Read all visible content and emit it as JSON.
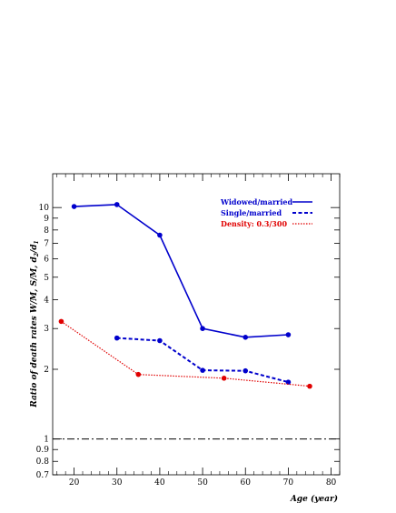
{
  "chart_data": {
    "type": "line",
    "xlabel": "Age (year)",
    "ylabel": "Ratio of death rates W/M, S/M, d",
    "ylabel_sub1": "2",
    "ylabel_mid": "/d",
    "ylabel_sub2": "1",
    "xlim": [
      15,
      82
    ],
    "ylim": [
      0.7,
      14
    ],
    "yscale": "log",
    "x_ticks": [
      20,
      30,
      40,
      50,
      60,
      70,
      80
    ],
    "x_tick_labels": [
      "20",
      "30",
      "40",
      "50",
      "60",
      "70",
      "80"
    ],
    "y_ticks": [
      0.7,
      0.8,
      0.9,
      1,
      2,
      3,
      4,
      5,
      6,
      7,
      8,
      9,
      10
    ],
    "y_tick_labels": [
      "0.7",
      "0.8",
      "0.9",
      "1",
      "2",
      "3",
      "4",
      "5",
      "6",
      "7",
      "8",
      "9",
      "10"
    ],
    "reference_line": {
      "y": 1,
      "style": "dash-dot"
    },
    "legend_position": "top-right",
    "series": [
      {
        "name": "Widowed/married",
        "color": "#0000cc",
        "style": "solid",
        "points": [
          [
            20,
            10.1
          ],
          [
            30,
            10.3
          ],
          [
            40,
            7.6
          ],
          [
            50,
            3.0
          ],
          [
            60,
            2.75
          ],
          [
            70,
            2.82
          ]
        ]
      },
      {
        "name": "Single/married",
        "color": "#0000cc",
        "style": "dashed",
        "points": [
          [
            30,
            2.73
          ],
          [
            40,
            2.66
          ],
          [
            50,
            1.98
          ],
          [
            60,
            1.97
          ],
          [
            70,
            1.76
          ]
        ]
      },
      {
        "name": "Density: 0.3/300",
        "color": "#e00000",
        "style": "dotted",
        "points": [
          [
            17,
            3.22
          ],
          [
            35,
            1.9
          ],
          [
            55,
            1.83
          ],
          [
            75,
            1.69
          ]
        ]
      }
    ]
  }
}
